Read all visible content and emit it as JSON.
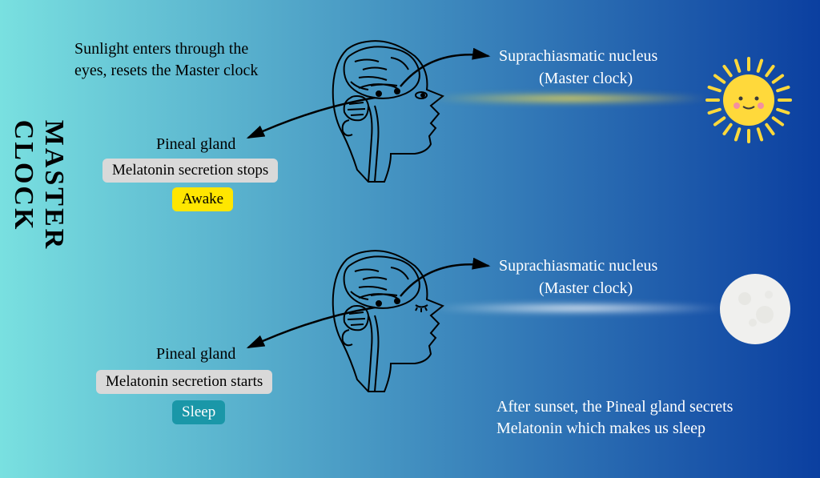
{
  "title": "MASTER CLOCK",
  "bg_gradient_left": "#79e0e0",
  "bg_gradient_right": "#0b3fa0",
  "top": {
    "intro": "Sunlight enters through the\neyes, resets the Master clock",
    "scn_line1": "Suprachiasmatic nucleus",
    "scn_line2": "(Master clock)",
    "pineal_label": "Pineal gland",
    "melatonin": "Melatonin secretion stops",
    "state": "Awake",
    "state_bg": "#ffe600",
    "mel_bg": "#d9d9d9",
    "sun_fill": "#ffd93b",
    "beam_color": "#ffe24a"
  },
  "bottom": {
    "scn_line1": "Suprachiasmatic nucleus",
    "scn_line2": "(Master clock)",
    "pineal_label": "Pineal gland",
    "melatonin": "Melatonin secretion starts",
    "state": "Sleep",
    "state_bg": "#1a97a8",
    "mel_bg": "#d9d9d9",
    "outro": "After sunset, the Pineal gland secrets\nMelatonin which makes us sleep",
    "moon_fill": "#f0f0ee",
    "beam_color": "#ffffff"
  },
  "brain_stroke": "#000000",
  "sun_face_stroke": "#3a3a3a",
  "sun_blush": "#f48fa0"
}
